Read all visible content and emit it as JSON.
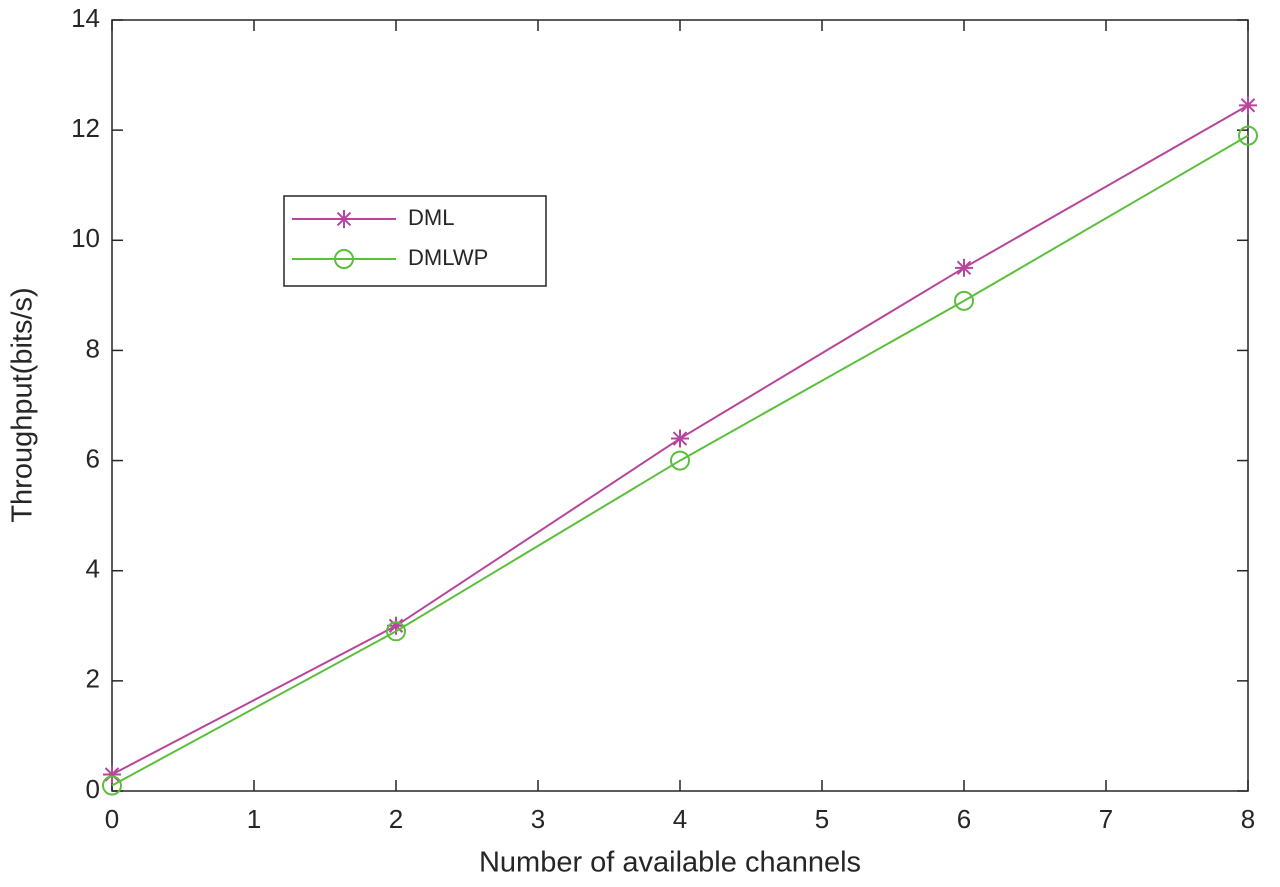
{
  "chart_data": {
    "type": "line",
    "x_label": "Number of available channels",
    "y_label": "Throughput(bits/s)",
    "x": [
      0,
      2,
      4,
      6,
      8
    ],
    "series": [
      {
        "name": "DML",
        "color": "#b8459c",
        "marker": "star",
        "values": [
          0.3,
          3.0,
          6.4,
          9.5,
          12.45
        ]
      },
      {
        "name": "DMLWP",
        "color": "#5cbf3c",
        "marker": "circle",
        "values": [
          0.1,
          2.9,
          6.0,
          8.9,
          11.9
        ]
      }
    ],
    "xlim": [
      0,
      8
    ],
    "ylim": [
      0,
      14
    ],
    "xticks": [
      0,
      1,
      2,
      3,
      4,
      5,
      6,
      7,
      8
    ],
    "yticks": [
      0,
      2,
      4,
      6,
      8,
      10,
      12,
      14
    ],
    "grid": false,
    "legend_position": "upper left"
  }
}
